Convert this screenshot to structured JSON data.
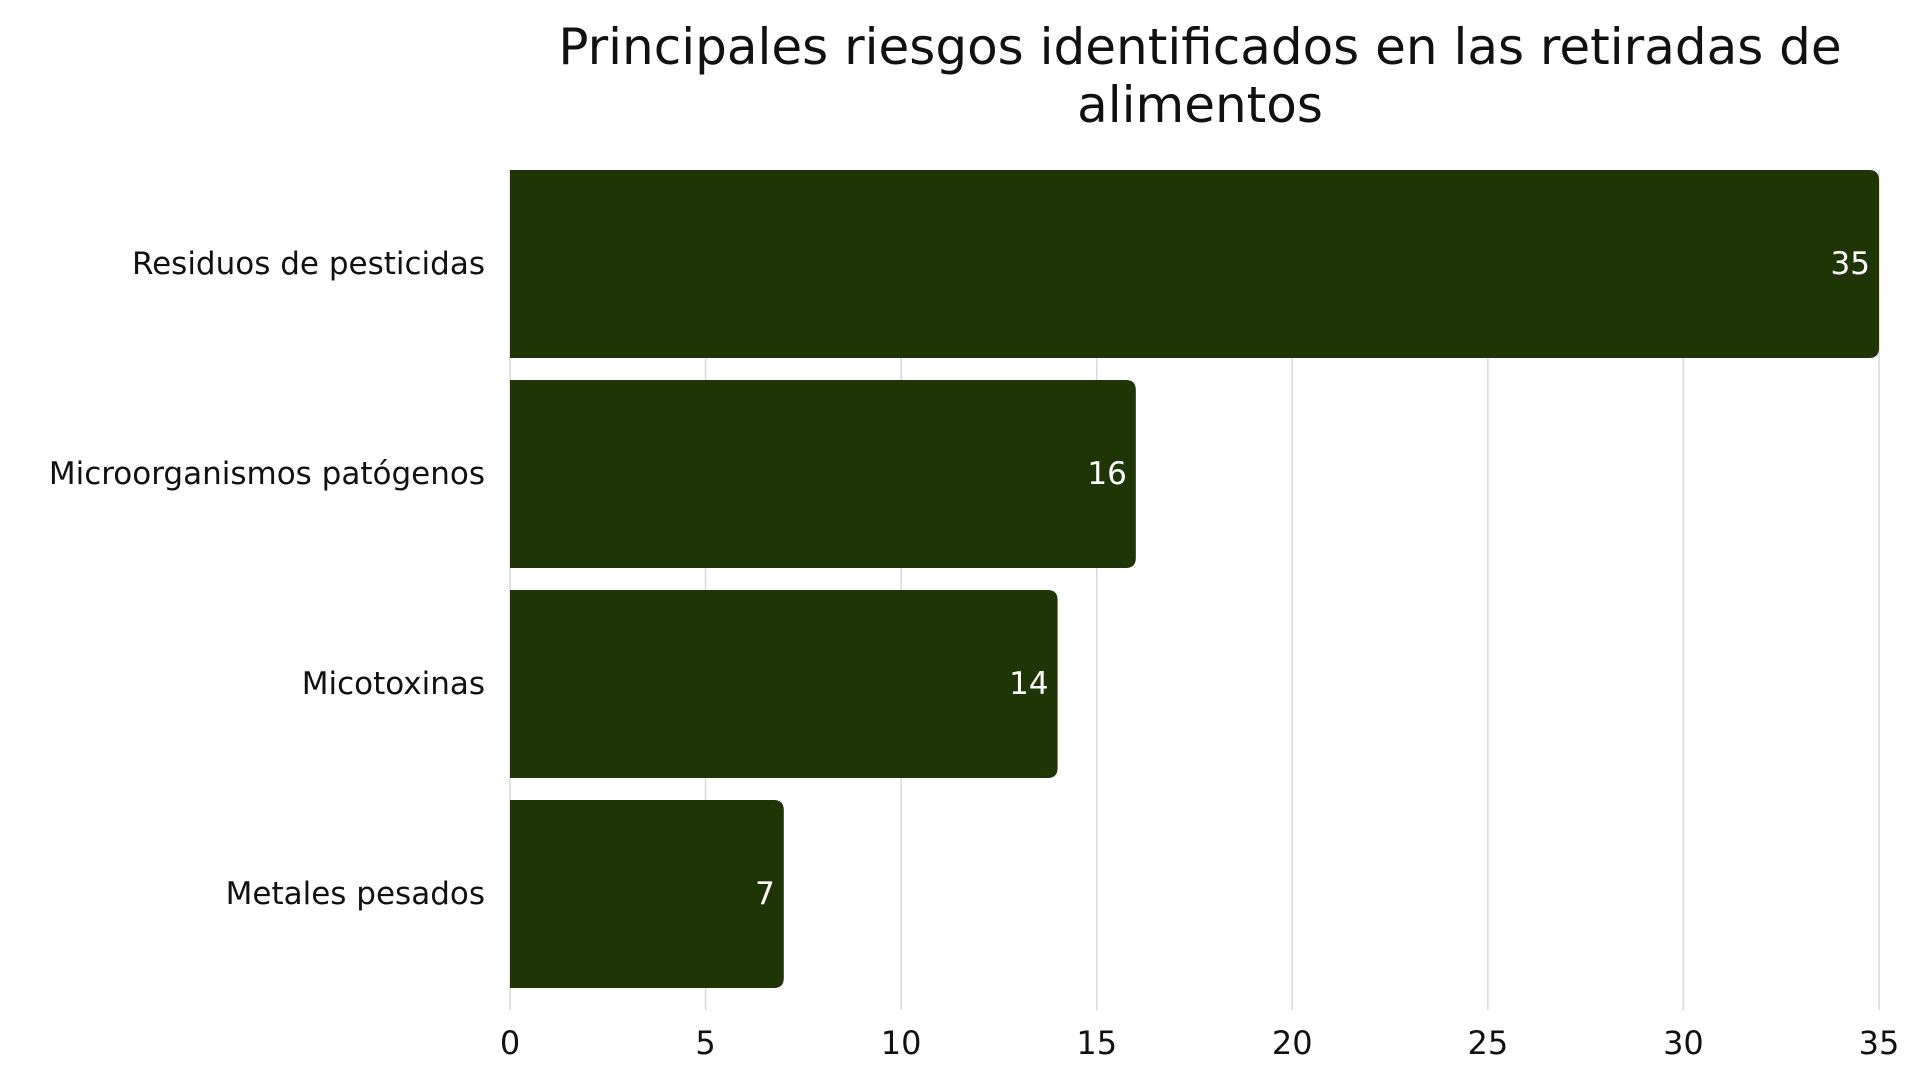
{
  "chart_data": {
    "type": "bar",
    "orientation": "horizontal",
    "title": "Principales riesgos identificados en las retiradas de alimentos",
    "categories": [
      "Residuos de pesticidas",
      "Microorganismos patógenos",
      "Micotoxinas",
      "Metales pesados"
    ],
    "values": [
      35,
      16,
      14,
      7
    ],
    "data_labels": [
      "35",
      "16",
      "14",
      "7"
    ],
    "xlim": [
      0,
      35
    ],
    "x_ticks": [
      0,
      5,
      10,
      15,
      20,
      25,
      30,
      35
    ],
    "x_tick_labels": [
      "0",
      "5",
      "10",
      "15",
      "20",
      "25",
      "30",
      "35"
    ],
    "xlabel": "",
    "ylabel": "",
    "grid": "vertical",
    "legend": "none",
    "bar_color": "#1f3505",
    "value_label_color": "#ffffff"
  }
}
